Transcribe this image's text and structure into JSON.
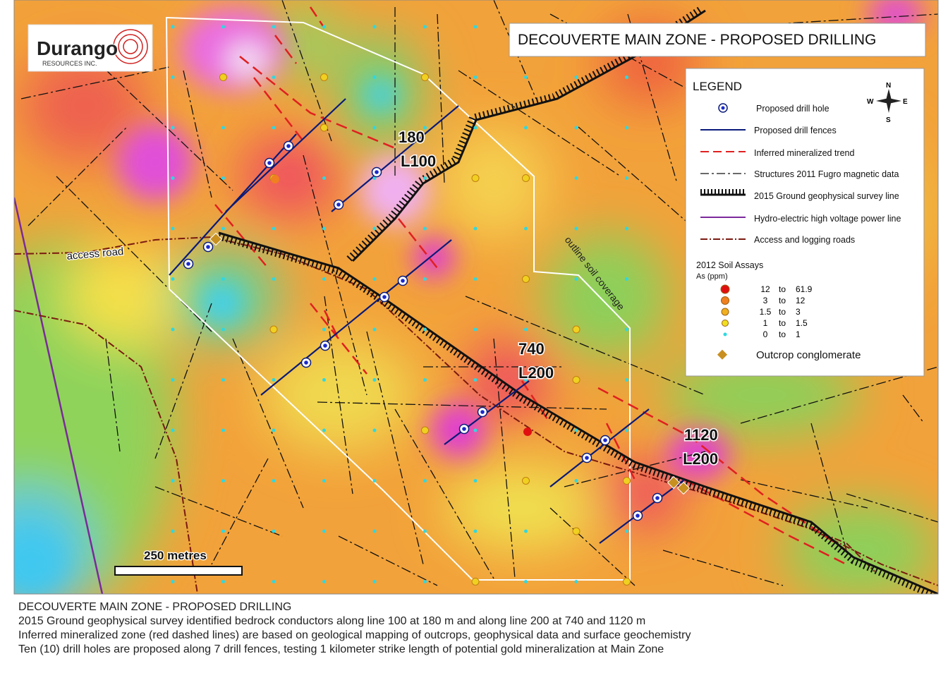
{
  "logo": {
    "name": "Durango",
    "subtitle": "RESOURCES INC."
  },
  "title": "DECOUVERTE MAIN ZONE - PROPOSED DRILLING",
  "legend": {
    "title": "LEGEND",
    "compass": {
      "n": "N",
      "s": "S",
      "e": "E",
      "w": "W"
    },
    "items": [
      "Proposed drill hole",
      "Proposed drill fences",
      "Inferred mineralized trend",
      "Structures 2011 Fugro magnetic data",
      "2015 Ground geophysical survey line",
      "Hydro-electric high voltage power line",
      "Access and logging roads"
    ],
    "soil": {
      "title": "2012 Soil Assays",
      "unit": "As (ppm)",
      "connector": "to",
      "ranges": [
        [
          "12",
          "61.9"
        ],
        [
          "3",
          "12"
        ],
        [
          "1.5",
          "3"
        ],
        [
          "1",
          "1.5"
        ],
        [
          "0",
          "1"
        ]
      ]
    },
    "outcrop": "Outcrop conglomerate"
  },
  "labels": {
    "zone1": [
      "180",
      "L100"
    ],
    "zone2": [
      "740",
      "L200"
    ],
    "zone3": [
      "1120",
      "L200"
    ],
    "road": "access road",
    "soil_outline": "outline soil coverage",
    "scale": "250 metres"
  },
  "caption": [
    "DECOUVERTE MAIN ZONE - PROPOSED DRILLING",
    "2015 Ground geophysical survey identified bedrock conductors along line 100 at 180 m and along line 200 at 740 and 1120 m",
    "Inferred mineralized zone (red dashed lines) are based on geological mapping of outcrops, geophysical data and surface geochemistry",
    "Ten (10) drill holes are proposed along 7 drill fences, testing 1 kilometer strike length of potential gold mineralization at Main Zone"
  ]
}
